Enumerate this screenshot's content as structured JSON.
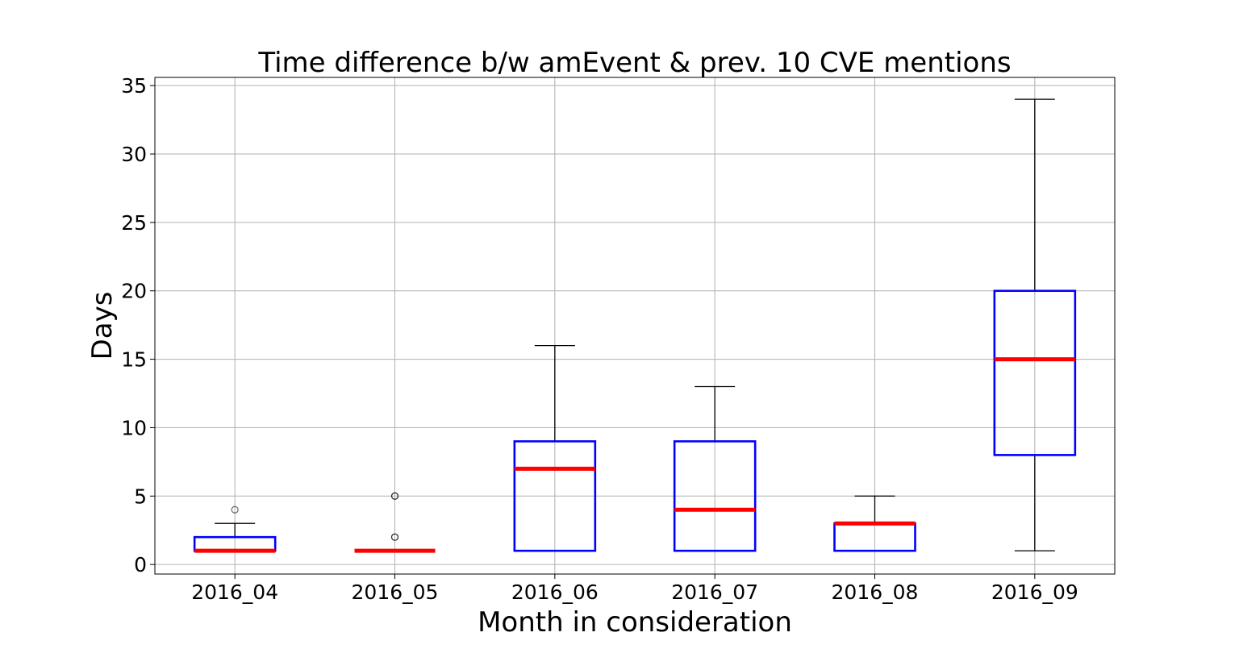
{
  "chart_data": {
    "type": "box",
    "title": "Time difference b/w amEvent & prev. 10 CVE mentions",
    "xlabel": "Month in consideration",
    "ylabel": "Days",
    "ylim": [
      -0.7,
      35.6
    ],
    "yticks": [
      0,
      5,
      10,
      15,
      20,
      25,
      30,
      35
    ],
    "grid": true,
    "categories": [
      "2016_04",
      "2016_05",
      "2016_06",
      "2016_07",
      "2016_08",
      "2016_09"
    ],
    "boxes": [
      {
        "category": "2016_04",
        "whisker_low": 1,
        "q1": 1,
        "median": 1,
        "q3": 2,
        "whisker_high": 3,
        "outliers": [
          4
        ]
      },
      {
        "category": "2016_05",
        "whisker_low": 1,
        "q1": 1,
        "median": 1,
        "q3": 1,
        "whisker_high": 1,
        "outliers": [
          2,
          2,
          5,
          5
        ]
      },
      {
        "category": "2016_06",
        "whisker_low": 1,
        "q1": 1,
        "median": 7,
        "q3": 9,
        "whisker_high": 16,
        "outliers": []
      },
      {
        "category": "2016_07",
        "whisker_low": 1,
        "q1": 1,
        "median": 4,
        "q3": 9,
        "whisker_high": 13,
        "outliers": []
      },
      {
        "category": "2016_08",
        "whisker_low": 1,
        "q1": 1,
        "median": 3,
        "q3": 3,
        "whisker_high": 5,
        "outliers": []
      },
      {
        "category": "2016_09",
        "whisker_low": 1,
        "q1": 8,
        "median": 15,
        "q3": 20,
        "whisker_high": 34,
        "outliers": []
      }
    ],
    "colors": {
      "box": "#0000ff",
      "median": "#ff0000",
      "whisker": "#000000",
      "grid": "#b0b0b0",
      "outlier": "#000000"
    }
  }
}
